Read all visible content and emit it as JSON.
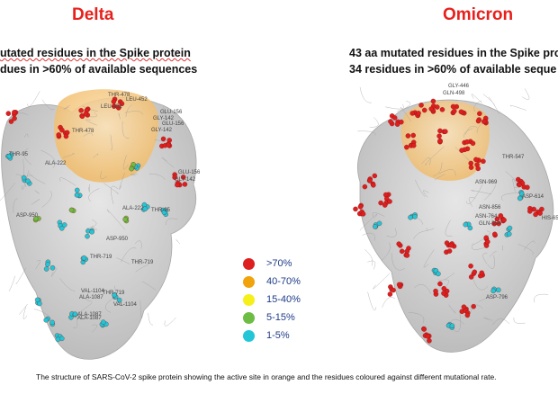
{
  "delta": {
    "title": "Delta",
    "line1": "utated residues in the Spike protein",
    "line2": "dues in >60% of available sequences",
    "labels": [
      "THR-478",
      "LEU-452",
      "GLU-156",
      "GLY-142",
      "LEU-452",
      "GLU-156",
      "GLY-142",
      "THR-478",
      "ALA-222",
      "THR-95",
      "GLU-156",
      "GLY-142",
      "ASP-950",
      "ALA-222",
      "THR-95",
      "ASP-950",
      "THR-719",
      "THR-719",
      "VAL-1104",
      "ALA-1087",
      "THR-719",
      "ALA-1087",
      "VAL-1104",
      "ALA-1087"
    ]
  },
  "omicron": {
    "title": "Omicron",
    "line1": "43 aa mutated residues in the Spike prot",
    "line2": "34 residues in >60% of available seque",
    "labels": [
      "GLY-446",
      "GLN-498",
      "THR-547",
      "ASN-969",
      "ASN-856",
      "ASN-764",
      "GLN-954",
      "ASP-614",
      "HIS-655",
      "ASP-796"
    ]
  },
  "legend": [
    {
      "label": ">70%",
      "color": "#dd1f1f"
    },
    {
      "label": "40-70%",
      "color": "#f0a30a"
    },
    {
      "label": "15-40%",
      "color": "#f5ef1a"
    },
    {
      "label": "5-15%",
      "color": "#6dbd44"
    },
    {
      "label": "1-5%",
      "color": "#22c6d6"
    }
  ],
  "caption": "The structure of SARS-CoV-2 spike protein showing the active site in orange and the residues coloured against different mutational rate."
}
